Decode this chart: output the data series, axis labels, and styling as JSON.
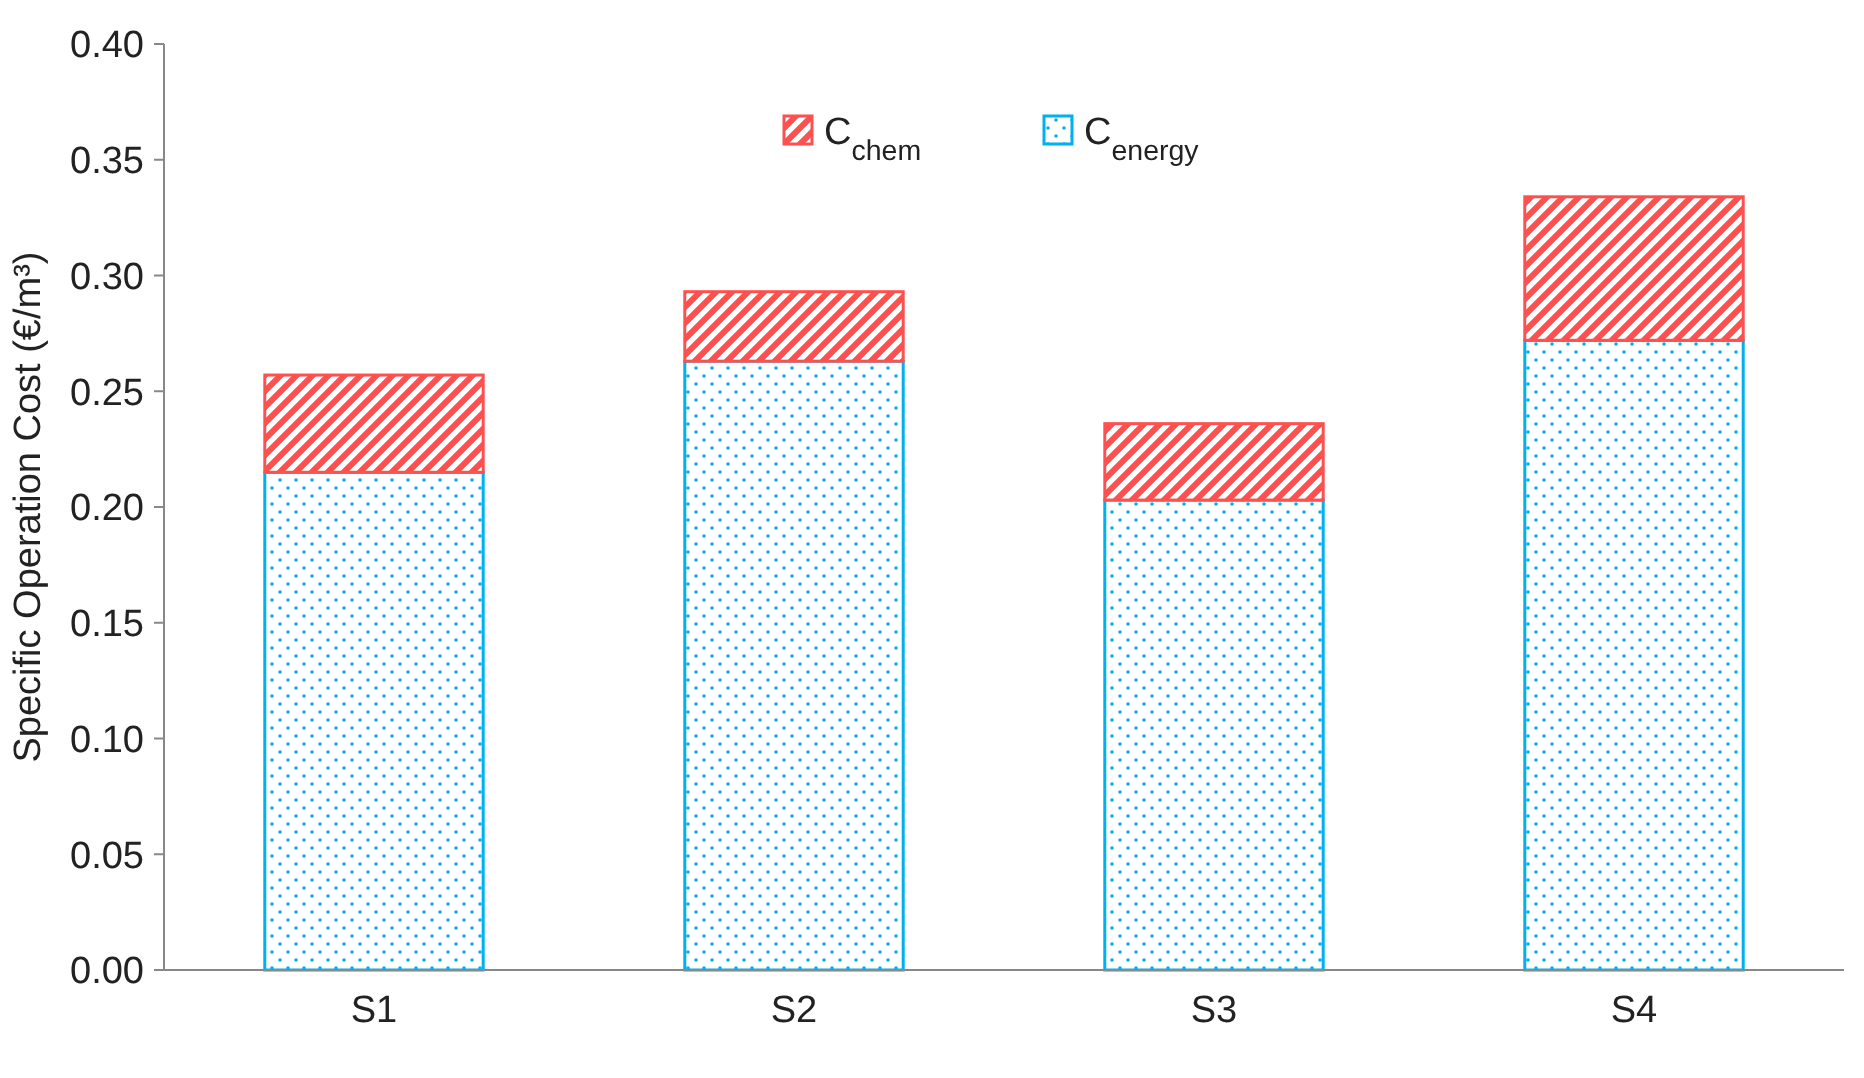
{
  "chart_data": {
    "type": "bar",
    "stacked": true,
    "categories": [
      "S1",
      "S2",
      "S3",
      "S4"
    ],
    "series": [
      {
        "name": "C$_{energy}$",
        "color": "#00b0f0",
        "values": [
          0.215,
          0.263,
          0.203,
          0.272
        ]
      },
      {
        "name": "C$_{chem}$",
        "color": "#ff5050",
        "values": [
          0.042,
          0.03,
          0.033,
          0.062
        ]
      }
    ],
    "ylabel": "Specific Operation Cost (€/m³)",
    "ylim": [
      0,
      0.4
    ],
    "yticks": [
      {
        "value": 0,
        "label": "0.00"
      },
      {
        "value": 0.05,
        "label": "0.05"
      },
      {
        "value": 0.1,
        "label": "0.10"
      },
      {
        "value": 0.15,
        "label": "0.15"
      },
      {
        "value": 0.2,
        "label": "0.20"
      },
      {
        "value": 0.25,
        "label": "0.25"
      },
      {
        "value": 0.3,
        "label": "0.30"
      },
      {
        "value": 0.35,
        "label": "0.35"
      },
      {
        "value": 0.4,
        "label": "0.40"
      }
    ],
    "grid": false,
    "legend": "top"
  }
}
